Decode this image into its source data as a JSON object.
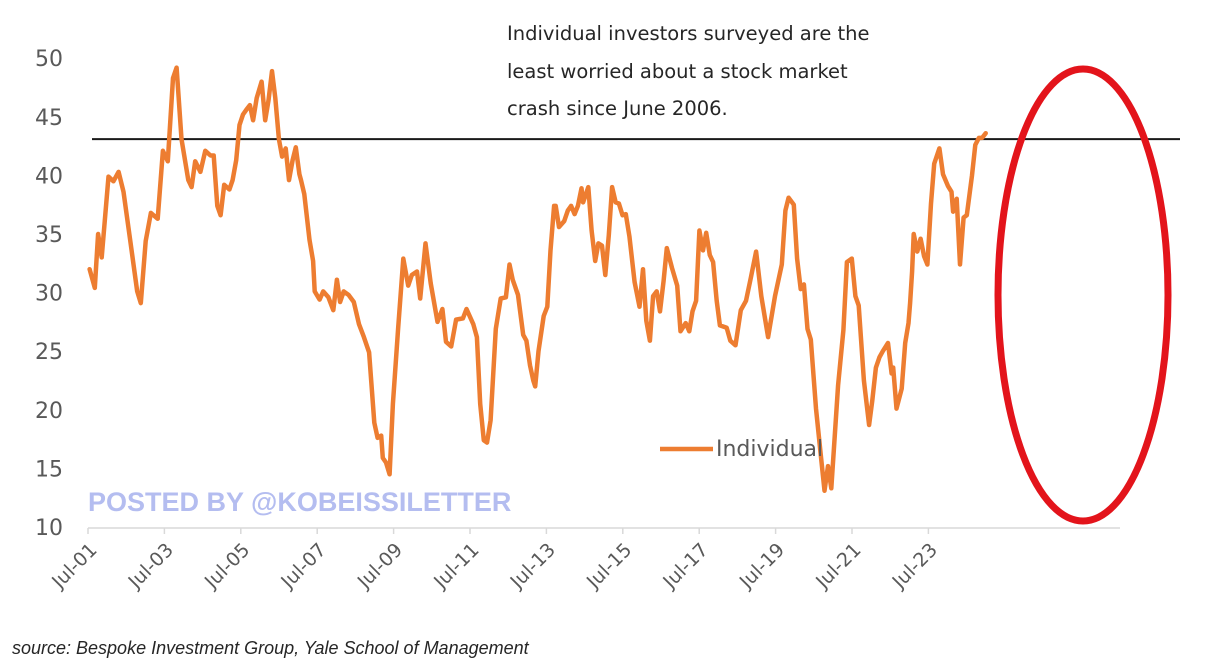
{
  "chart_data": {
    "type": "line",
    "title": "",
    "annotation": [
      "Individual investors surveyed are the",
      "least worried about a stock market",
      "crash since June 2006."
    ],
    "xlabel": "",
    "ylabel": "",
    "ylim": [
      10,
      50
    ],
    "yticks": [
      10,
      15,
      20,
      25,
      30,
      35,
      40,
      45,
      50
    ],
    "xlim": [
      2001.5,
      2025.0
    ],
    "xticks": [
      {
        "x": 2001.5,
        "label": "Jul-01"
      },
      {
        "x": 2003.5,
        "label": "Jul-03"
      },
      {
        "x": 2005.5,
        "label": "Jul-05"
      },
      {
        "x": 2007.5,
        "label": "Jul-07"
      },
      {
        "x": 2009.5,
        "label": "Jul-09"
      },
      {
        "x": 2011.5,
        "label": "Jul-11"
      },
      {
        "x": 2013.5,
        "label": "Jul-13"
      },
      {
        "x": 2015.5,
        "label": "Jul-15"
      },
      {
        "x": 2017.5,
        "label": "Jul-17"
      },
      {
        "x": 2019.5,
        "label": "Jul-19"
      },
      {
        "x": 2021.5,
        "label": "Jul-21"
      },
      {
        "x": 2023.5,
        "label": "Jul-23"
      }
    ],
    "grid": false,
    "legend": {
      "position": "bottom-center-right",
      "entries": [
        "Individual"
      ]
    },
    "reference_line": {
      "y": 43.1
    },
    "highlight": {
      "shape": "ellipse",
      "x_range": [
        2024.2,
        2028.6
      ],
      "y_range": [
        10.4,
        48.8
      ]
    },
    "series": [
      {
        "name": "Individual",
        "color": "#ed7d31",
        "points": [
          [
            2001.55,
            32.0
          ],
          [
            2001.71,
            30.4
          ],
          [
            2001.81,
            35.0
          ],
          [
            2001.92,
            33.0
          ],
          [
            2002.13,
            39.9
          ],
          [
            2002.28,
            39.5
          ],
          [
            2002.44,
            40.3
          ],
          [
            2002.59,
            38.6
          ],
          [
            2002.8,
            34.4
          ],
          [
            2003.01,
            30.1
          ],
          [
            2003.12,
            29.1
          ],
          [
            2003.27,
            34.4
          ],
          [
            2003.43,
            36.8
          ],
          [
            2003.64,
            36.3
          ],
          [
            2003.8,
            42.1
          ],
          [
            2003.95,
            41.2
          ],
          [
            2004.11,
            48.3
          ],
          [
            2004.22,
            49.2
          ],
          [
            2004.37,
            43.1
          ],
          [
            2004.58,
            39.6
          ],
          [
            2004.68,
            39.0
          ],
          [
            2004.79,
            41.2
          ],
          [
            2004.95,
            40.3
          ],
          [
            2005.1,
            42.1
          ],
          [
            2005.26,
            41.7
          ],
          [
            2005.36,
            41.7
          ],
          [
            2005.47,
            37.4
          ],
          [
            2005.57,
            36.6
          ],
          [
            2005.68,
            39.2
          ],
          [
            2005.84,
            38.8
          ],
          [
            2005.94,
            39.6
          ],
          [
            2006.05,
            41.3
          ],
          [
            2006.15,
            44.3
          ],
          [
            2006.26,
            45.2
          ],
          [
            2006.36,
            45.6
          ],
          [
            2006.47,
            46.0
          ],
          [
            2006.57,
            44.7
          ],
          [
            2006.68,
            46.6
          ],
          [
            2006.83,
            48.0
          ],
          [
            2006.94,
            44.7
          ],
          [
            2007.04,
            46.4
          ],
          [
            2007.15,
            48.9
          ],
          [
            2007.25,
            46.6
          ],
          [
            2007.36,
            43.1
          ],
          [
            2007.46,
            41.6
          ],
          [
            2007.57,
            42.3
          ],
          [
            2007.67,
            39.6
          ],
          [
            2007.78,
            41.3
          ],
          [
            2007.88,
            42.4
          ],
          [
            2007.99,
            40.1
          ],
          [
            2008.04,
            39.6
          ],
          [
            2008.14,
            38.4
          ],
          [
            2008.3,
            34.5
          ],
          [
            2008.41,
            32.7
          ],
          [
            2008.46,
            30.1
          ],
          [
            2008.61,
            29.4
          ],
          [
            2008.72,
            30.1
          ],
          [
            2008.88,
            29.6
          ],
          [
            2009.03,
            28.5
          ],
          [
            2009.14,
            31.1
          ],
          [
            2009.24,
            29.2
          ],
          [
            2009.35,
            30.1
          ],
          [
            2009.5,
            29.8
          ],
          [
            2009.66,
            29.2
          ],
          [
            2009.82,
            27.3
          ],
          [
            2009.97,
            26.2
          ],
          [
            2010.13,
            24.9
          ],
          [
            2010.29,
            18.9
          ],
          [
            2010.39,
            17.6
          ],
          [
            2010.5,
            17.8
          ],
          [
            2010.55,
            15.9
          ],
          [
            2010.65,
            15.5
          ],
          [
            2010.76,
            14.5
          ],
          [
            2010.86,
            20.5
          ],
          [
            2011.02,
            26.9
          ],
          [
            2011.18,
            32.9
          ],
          [
            2011.33,
            30.6
          ],
          [
            2011.44,
            31.5
          ],
          [
            2011.6,
            31.8
          ],
          [
            2011.7,
            29.5
          ],
          [
            2011.86,
            34.2
          ],
          [
            2012.02,
            30.8
          ],
          [
            2012.23,
            27.5
          ],
          [
            2012.38,
            28.6
          ],
          [
            2012.49,
            25.8
          ],
          [
            2012.65,
            25.4
          ],
          [
            2012.8,
            27.7
          ],
          [
            2013.01,
            27.8
          ],
          [
            2013.12,
            28.6
          ],
          [
            2013.33,
            27.3
          ],
          [
            2013.44,
            26.2
          ],
          [
            2013.54,
            20.5
          ],
          [
            2013.65,
            17.4
          ],
          [
            2013.75,
            17.2
          ],
          [
            2013.86,
            19.1
          ],
          [
            2014.02,
            26.9
          ],
          [
            2014.17,
            29.5
          ],
          [
            2014.33,
            29.6
          ],
          [
            2014.44,
            32.4
          ],
          [
            2014.54,
            31.1
          ],
          [
            2014.7,
            29.8
          ],
          [
            2014.86,
            26.4
          ],
          [
            2014.96,
            25.9
          ],
          [
            2015.07,
            23.8
          ],
          [
            2015.17,
            22.5
          ],
          [
            2015.23,
            22.0
          ],
          [
            2015.33,
            25.0
          ],
          [
            2015.49,
            28.0
          ],
          [
            2015.6,
            28.8
          ],
          [
            2015.7,
            33.6
          ],
          [
            2015.81,
            37.4
          ],
          [
            2015.86,
            37.4
          ],
          [
            2015.96,
            35.6
          ],
          [
            2016.12,
            36.1
          ],
          [
            2016.23,
            37.0
          ],
          [
            2016.33,
            37.4
          ],
          [
            2016.44,
            36.7
          ],
          [
            2016.54,
            37.4
          ],
          [
            2016.65,
            38.9
          ],
          [
            2016.7,
            37.7
          ],
          [
            2016.86,
            39.0
          ],
          [
            2016.96,
            35.3
          ],
          [
            2017.07,
            32.7
          ],
          [
            2017.17,
            34.2
          ],
          [
            2017.28,
            34.0
          ],
          [
            2017.38,
            31.5
          ],
          [
            2017.49,
            34.9
          ],
          [
            2017.59,
            39.0
          ],
          [
            2017.7,
            37.7
          ],
          [
            2017.8,
            37.6
          ],
          [
            2017.91,
            36.6
          ],
          [
            2018.01,
            36.7
          ],
          [
            2018.12,
            34.8
          ],
          [
            2018.28,
            30.9
          ],
          [
            2018.43,
            28.8
          ],
          [
            2018.54,
            32.0
          ],
          [
            2018.64,
            27.6
          ],
          [
            2018.75,
            25.9
          ],
          [
            2018.85,
            29.7
          ],
          [
            2018.96,
            30.1
          ],
          [
            2019.06,
            28.4
          ],
          [
            2019.17,
            31.0
          ],
          [
            2019.27,
            33.8
          ],
          [
            2019.43,
            32.1
          ],
          [
            2019.59,
            30.6
          ],
          [
            2019.69,
            26.7
          ],
          [
            2019.85,
            27.4
          ],
          [
            2019.96,
            26.7
          ],
          [
            2020.06,
            28.4
          ],
          [
            2020.17,
            29.3
          ],
          [
            2020.27,
            35.3
          ],
          [
            2020.38,
            33.6
          ],
          [
            2020.48,
            35.1
          ],
          [
            2020.59,
            33.2
          ],
          [
            2020.69,
            32.6
          ],
          [
            2020.8,
            29.3
          ],
          [
            2020.9,
            27.2
          ],
          [
            2021.11,
            27.0
          ],
          [
            2021.22,
            25.9
          ],
          [
            2021.38,
            25.5
          ],
          [
            2021.54,
            28.5
          ],
          [
            2021.7,
            29.3
          ],
          [
            2021.85,
            31.3
          ],
          [
            2022.01,
            33.5
          ],
          [
            2022.17,
            29.7
          ],
          [
            2022.38,
            26.2
          ],
          [
            2022.59,
            29.7
          ],
          [
            2022.8,
            32.4
          ],
          [
            2022.91,
            37.0
          ],
          [
            2023.01,
            38.1
          ],
          [
            2023.17,
            37.5
          ],
          [
            2023.27,
            32.9
          ],
          [
            2023.38,
            30.3
          ],
          [
            2023.48,
            30.7
          ],
          [
            2023.59,
            26.9
          ],
          [
            2023.69,
            26.0
          ],
          [
            2023.85,
            20.1
          ],
          [
            2024.01,
            15.8
          ],
          [
            2024.11,
            13.1
          ],
          [
            2024.22,
            15.2
          ],
          [
            2024.32,
            13.3
          ],
          [
            2024.53,
            22.1
          ],
          [
            2024.69,
            26.8
          ],
          [
            2024.8,
            32.6
          ],
          [
            2024.95,
            32.9
          ],
          [
            2025.06,
            29.7
          ],
          [
            2025.16,
            28.9
          ],
          [
            2025.32,
            22.5
          ],
          [
            2025.48,
            18.7
          ],
          [
            2025.58,
            20.8
          ],
          [
            2025.69,
            23.6
          ],
          [
            2025.8,
            24.5
          ],
          [
            2025.9,
            25.0
          ],
          [
            2026.06,
            25.7
          ],
          [
            2026.17,
            23.1
          ],
          [
            2026.22,
            23.6
          ],
          [
            2026.32,
            20.1
          ],
          [
            2026.48,
            21.8
          ],
          [
            2026.59,
            25.7
          ],
          [
            2026.69,
            27.4
          ],
          [
            2026.74,
            29.1
          ],
          [
            2026.8,
            31.8
          ],
          [
            2026.85,
            35.0
          ],
          [
            2026.96,
            33.5
          ],
          [
            2027.06,
            34.6
          ],
          [
            2027.17,
            33.1
          ],
          [
            2027.27,
            32.4
          ],
          [
            2027.38,
            37.6
          ],
          [
            2027.48,
            41.0
          ],
          [
            2027.64,
            42.3
          ],
          [
            2027.75,
            40.1
          ],
          [
            2027.9,
            39.1
          ],
          [
            2028.01,
            38.6
          ],
          [
            2028.06,
            36.9
          ],
          [
            2028.17,
            38.0
          ],
          [
            2028.27,
            32.4
          ],
          [
            2028.38,
            36.4
          ],
          [
            2028.48,
            36.6
          ],
          [
            2028.64,
            40.0
          ],
          [
            2028.74,
            42.6
          ],
          [
            2028.85,
            43.2
          ],
          [
            2028.95,
            43.2
          ],
          [
            2029.06,
            43.6
          ]
        ]
      }
    ]
  },
  "watermark": "POSTED BY @KOBEISSILETTER",
  "source": "source: Bespoke Investment Group, Yale School of Management",
  "colors": {
    "line": "#ed7d31",
    "reference_line": "#1a1a1a",
    "highlight": "#e3141b",
    "watermark": "#b4bdf0",
    "axis": "#d9d9d9"
  }
}
